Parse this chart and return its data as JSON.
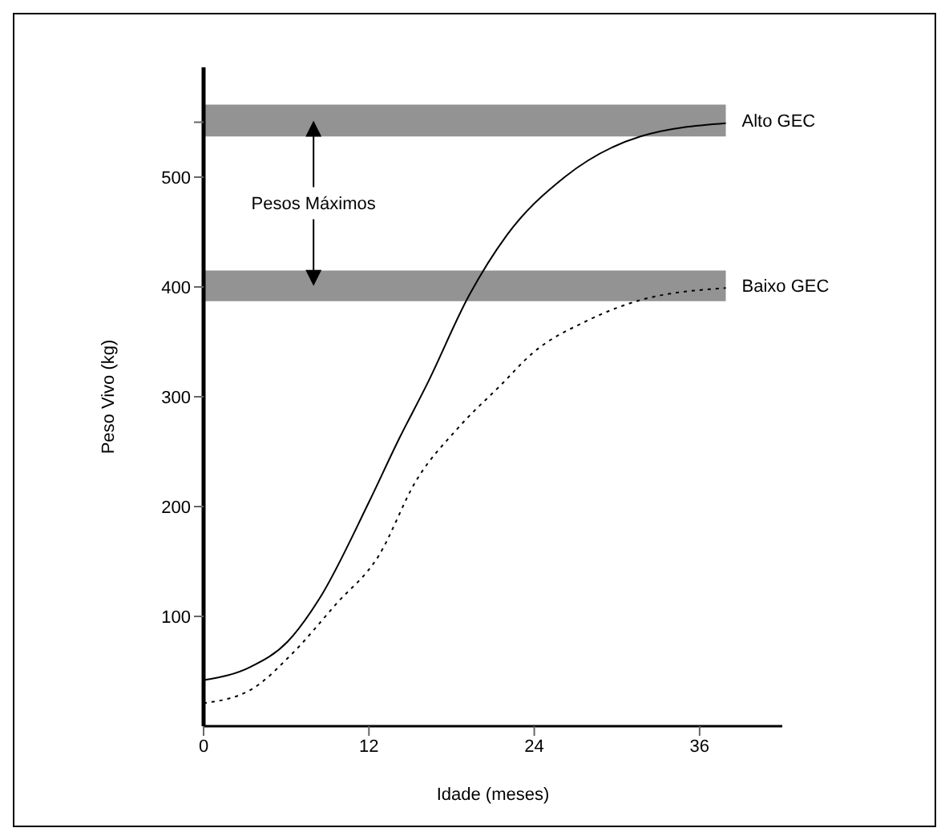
{
  "chart_data": {
    "type": "line",
    "xlabel": "Idade (meses)",
    "ylabel": "Peso Vivo (kg)",
    "xlim": [
      0,
      42
    ],
    "xticks": [
      0,
      12,
      24,
      36
    ],
    "ylim": [
      0,
      600
    ],
    "yticks": [
      100,
      200,
      300,
      400,
      500,
      {
        "value": 550,
        "label": null
      }
    ],
    "series": [
      {
        "color": "#000000",
        "line_style": "solid",
        "x": [
          0,
          3.4,
          6.1,
          8.4,
          12,
          14.2,
          16.2,
          19.3,
          22,
          26.2,
          31.7,
          37.9
        ],
        "values": [
          42,
          54,
          77,
          116,
          204,
          262,
          311,
          393,
          447,
          500,
          537,
          549
        ]
      },
      {
        "color": "#000000",
        "line_style": "dotted",
        "x": [
          0,
          3.4,
          6.5,
          9.6,
          12.7,
          15.4,
          18.5,
          21.6,
          23.9,
          27.8,
          31.7,
          37.9
        ],
        "values": [
          21,
          33,
          67,
          111,
          155,
          223,
          272,
          311,
          340,
          369,
          388,
          399
        ]
      }
    ],
    "bands": [
      {
        "axis": "y",
        "from": 537,
        "to": 566,
        "label": "Alto GEC",
        "color": "#939393"
      },
      {
        "axis": "y",
        "from": 387,
        "to": 415,
        "label": "Baixo GEC",
        "color": "#939393"
      }
    ],
    "annotations": [
      "Pesos Máximos"
    ],
    "grid": false,
    "marker": "none"
  }
}
